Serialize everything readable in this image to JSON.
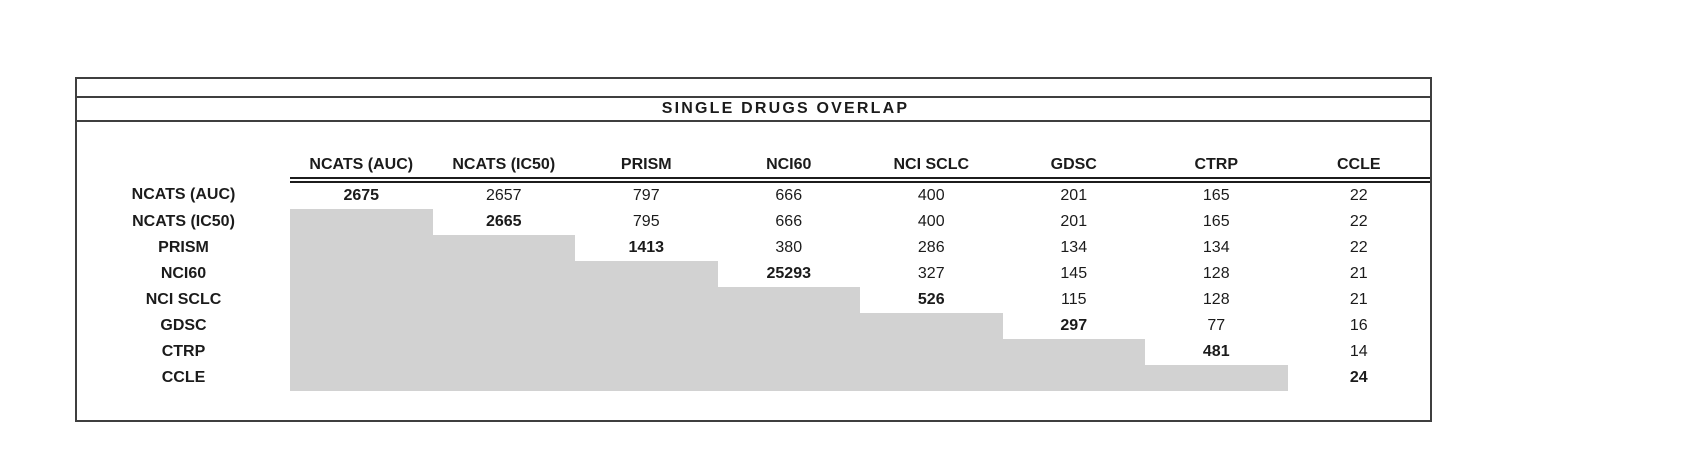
{
  "chart_data": {
    "type": "table",
    "title": "SINGLE DRUGS OVERLAP",
    "columns": [
      "NCATS (AUC)",
      "NCATS (IC50)",
      "PRISM",
      "NCI60",
      "NCI SCLC",
      "GDSC",
      "CTRP",
      "CCLE"
    ],
    "row_labels": [
      "NCATS (AUC)",
      "NCATS (IC50)",
      "PRISM",
      "NCI60",
      "NCI SCLC",
      "GDSC",
      "CTRP",
      "CCLE"
    ],
    "matrix": [
      [
        2675,
        2657,
        797,
        666,
        400,
        201,
        165,
        22
      ],
      [
        null,
        2665,
        795,
        666,
        400,
        201,
        165,
        22
      ],
      [
        null,
        null,
        1413,
        380,
        286,
        134,
        134,
        22
      ],
      [
        null,
        null,
        null,
        25293,
        327,
        145,
        128,
        21
      ],
      [
        null,
        null,
        null,
        null,
        526,
        115,
        128,
        21
      ],
      [
        null,
        null,
        null,
        null,
        null,
        297,
        77,
        16
      ],
      [
        null,
        null,
        null,
        null,
        null,
        null,
        481,
        14
      ],
      [
        null,
        null,
        null,
        null,
        null,
        null,
        null,
        24
      ]
    ],
    "diagonal_bold": true,
    "lower_triangle_shaded": true,
    "grid": "off",
    "legend_position": "none"
  },
  "colors": {
    "shaded_cell": "#d2d2d2",
    "border": "#3f3f3f",
    "double_rule": "#1c1c1c",
    "text": "#1b1b1b"
  }
}
